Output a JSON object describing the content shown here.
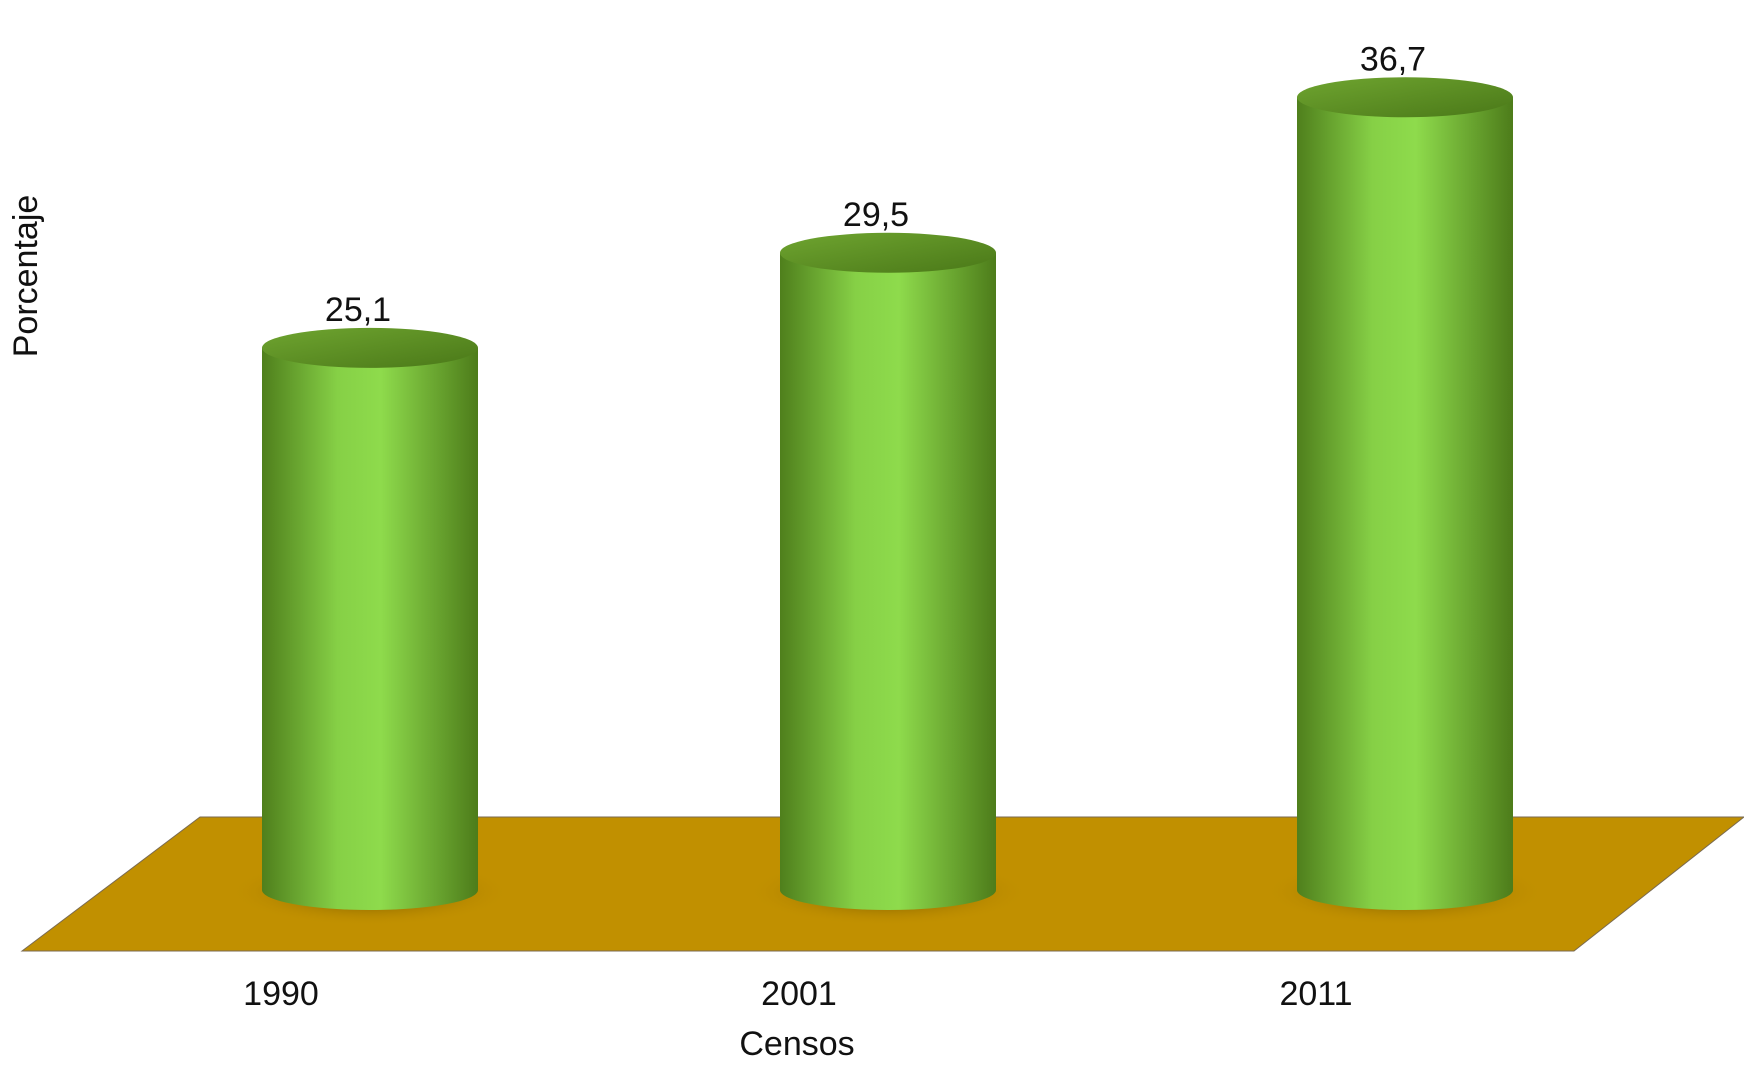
{
  "chart_data": {
    "type": "cylinder",
    "categories": [
      "1990",
      "2001",
      "2011"
    ],
    "values": [
      25.1,
      29.5,
      36.7
    ],
    "value_labels": [
      "25,1",
      "29,5",
      "36,7"
    ],
    "x_label": "Censos",
    "y_label": "Porcentaje",
    "color": "#7cc142",
    "floor_color": "#c19000"
  }
}
